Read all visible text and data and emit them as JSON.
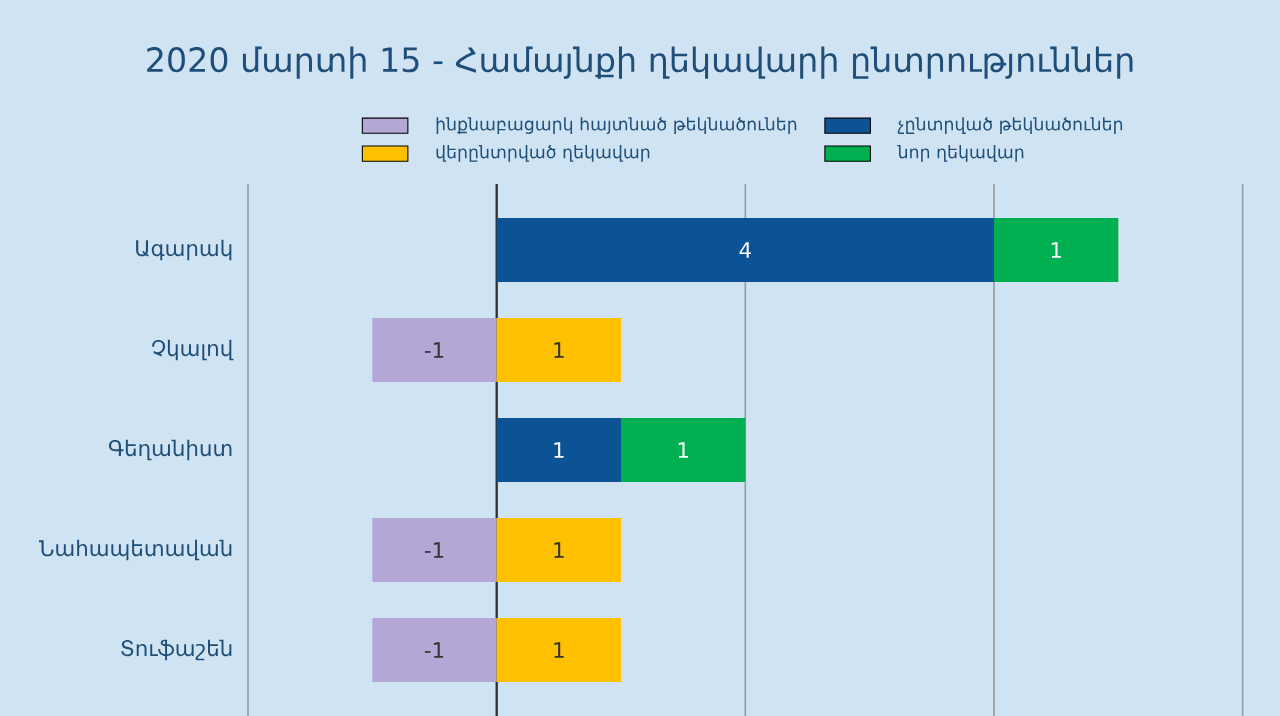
{
  "chart_data": {
    "type": "bar",
    "orientation": "horizontal",
    "stacked": true,
    "title": "2020 մարտի 15 - Համայնքի ղեկավարի ընտրություններ",
    "categories": [
      "Ագարակ",
      "Չկալով",
      "Գեղանիստ",
      "Նահապետավան",
      "Տուֆաշեն"
    ],
    "series": [
      {
        "name": "ինքնաբացարկ հայտնած թեկնածուներ",
        "color": "#b4a7d6",
        "values": [
          null,
          -1,
          null,
          -1,
          -1
        ]
      },
      {
        "name": "չընտրված թեկնածուներ",
        "color": "#0b5394",
        "values": [
          4,
          null,
          1,
          null,
          null
        ]
      },
      {
        "name": "վերընտրված ղեկավար",
        "color": "#ffc000",
        "values": [
          null,
          1,
          null,
          1,
          1
        ]
      },
      {
        "name": "նոր ղեկավար",
        "color": "#00b050",
        "values": [
          1,
          null,
          1,
          null,
          null
        ]
      }
    ],
    "xlim": [
      -2,
      6
    ],
    "xticks": [
      {
        "value": -2,
        "label": null
      },
      {
        "value": 0,
        "label": null
      },
      {
        "value": 2,
        "label": null
      },
      {
        "value": 4,
        "label": null
      },
      {
        "value": 6,
        "label": null
      }
    ],
    "tick_labels": "y",
    "grid": "x",
    "legend": "top",
    "data_labels": true,
    "ref_lines": [
      {
        "axis": "x",
        "value": 0,
        "color": "#333333"
      }
    ]
  }
}
